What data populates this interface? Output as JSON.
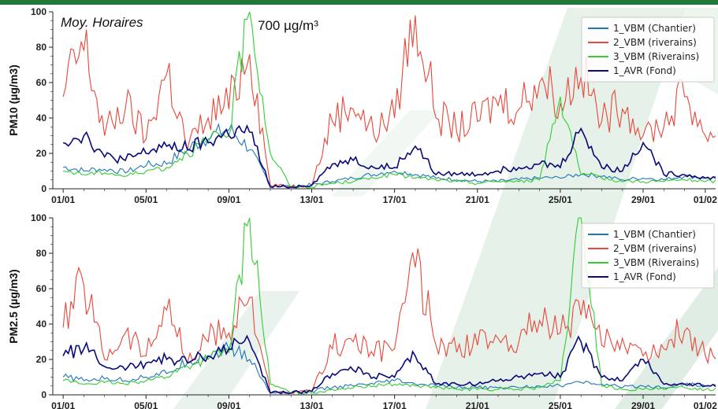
{
  "chart_data": [
    {
      "type": "line",
      "ylabel": "PM10 (µg/m3)",
      "ylim": [
        0,
        100
      ],
      "yticks": [
        "0",
        "20",
        "40",
        "60",
        "80",
        "100"
      ],
      "x_ticks": [
        "01/01",
        "05/01",
        "09/01",
        "13/01",
        "17/01",
        "21/01",
        "25/01",
        "29/01",
        "01/02"
      ],
      "annotations": [
        "Moy. Horaires",
        "700 µg/m³"
      ],
      "legend_position": "top-right",
      "grid": false,
      "series": [
        {
          "name": "1_VBM (Chantier)",
          "color": "#1f77b4",
          "x": [
            0,
            1,
            2,
            3,
            4,
            5,
            6,
            7,
            8,
            9,
            10,
            11,
            12,
            13,
            14,
            15,
            16,
            17,
            18,
            19,
            20,
            21,
            22,
            23,
            24,
            25,
            26,
            27,
            28,
            29,
            30,
            31
          ],
          "values": [
            12,
            10,
            11,
            9,
            13,
            14,
            22,
            28,
            33,
            22,
            2,
            1,
            2,
            4,
            6,
            8,
            10,
            8,
            6,
            5,
            4,
            4,
            5,
            6,
            6,
            8,
            7,
            5,
            6,
            5,
            7,
            6
          ]
        },
        {
          "name": "2_VBM (riverains)",
          "color": "#e8473a",
          "x": [
            0,
            1,
            2,
            3,
            4,
            5,
            6,
            7,
            8,
            9,
            10,
            11,
            12,
            13,
            14,
            15,
            16,
            17,
            18,
            19,
            20,
            21,
            22,
            23,
            24,
            25,
            26,
            27,
            28,
            29,
            30,
            31
          ],
          "values": [
            52,
            78,
            30,
            45,
            28,
            65,
            22,
            40,
            45,
            76,
            2,
            1,
            2,
            38,
            45,
            30,
            40,
            98,
            40,
            32,
            38,
            47,
            45,
            60,
            48,
            63,
            38,
            45,
            30,
            35,
            52,
            30
          ]
        },
        {
          "name": "3_VBM (Riverains)",
          "color": "#33cc33",
          "x": [
            0,
            1,
            2,
            3,
            4,
            5,
            6,
            7,
            8,
            9,
            10,
            11,
            12,
            13,
            14,
            15,
            16,
            17,
            18,
            19,
            20,
            21,
            22,
            23,
            24,
            25,
            26,
            27,
            28,
            29,
            30,
            31
          ],
          "values": [
            10,
            8,
            9,
            7,
            10,
            12,
            20,
            26,
            30,
            100,
            20,
            1,
            1,
            3,
            4,
            6,
            8,
            6,
            5,
            4,
            3,
            4,
            4,
            5,
            52,
            8,
            6,
            4,
            4,
            4,
            5,
            4
          ]
        },
        {
          "name": "1_AVR (Fond)",
          "color": "#0a0a7a",
          "x": [
            0,
            1,
            2,
            3,
            4,
            5,
            6,
            7,
            8,
            9,
            10,
            11,
            12,
            13,
            14,
            15,
            16,
            17,
            18,
            19,
            20,
            21,
            22,
            23,
            24,
            25,
            26,
            27,
            28,
            29,
            30,
            31
          ],
          "values": [
            26,
            30,
            18,
            16,
            20,
            24,
            22,
            26,
            30,
            32,
            1,
            1,
            2,
            14,
            16,
            12,
            12,
            24,
            8,
            8,
            8,
            10,
            12,
            14,
            12,
            34,
            12,
            10,
            26,
            8,
            8,
            6
          ]
        }
      ]
    },
    {
      "type": "line",
      "ylabel": "PM2.5 (µg/m3)",
      "ylim": [
        0,
        100
      ],
      "yticks": [
        "0",
        "20",
        "40",
        "60",
        "80",
        "100"
      ],
      "x_ticks": [
        "01/01",
        "05/01",
        "09/01",
        "13/01",
        "17/01",
        "21/01",
        "25/01",
        "29/01",
        "01/02"
      ],
      "legend_position": "top-right",
      "grid": false,
      "series": [
        {
          "name": "1_VBM (Chantier)",
          "color": "#1f77b4",
          "x": [
            0,
            1,
            2,
            3,
            4,
            5,
            6,
            7,
            8,
            9,
            10,
            11,
            12,
            13,
            14,
            15,
            16,
            17,
            18,
            19,
            20,
            21,
            22,
            23,
            24,
            25,
            26,
            27,
            28,
            29,
            30,
            31
          ],
          "values": [
            10,
            8,
            9,
            8,
            10,
            12,
            18,
            22,
            26,
            20,
            1,
            1,
            2,
            4,
            5,
            6,
            8,
            6,
            5,
            4,
            4,
            4,
            4,
            5,
            5,
            7,
            6,
            4,
            5,
            4,
            6,
            5
          ]
        },
        {
          "name": "2_VBM (riverains)",
          "color": "#e8473a",
          "x": [
            0,
            1,
            2,
            3,
            4,
            5,
            6,
            7,
            8,
            9,
            10,
            11,
            12,
            13,
            14,
            15,
            16,
            17,
            18,
            19,
            20,
            21,
            22,
            23,
            24,
            25,
            26,
            27,
            28,
            29,
            30,
            31
          ],
          "values": [
            38,
            62,
            20,
            35,
            22,
            48,
            18,
            30,
            35,
            55,
            1,
            1,
            2,
            26,
            30,
            22,
            26,
            72,
            28,
            24,
            28,
            32,
            30,
            42,
            35,
            45,
            28,
            32,
            22,
            26,
            36,
            22
          ]
        },
        {
          "name": "3_VBM (Riverains)",
          "color": "#33cc33",
          "x": [
            0,
            1,
            2,
            3,
            4,
            5,
            6,
            7,
            8,
            9,
            10,
            11,
            12,
            13,
            14,
            15,
            16,
            17,
            18,
            19,
            20,
            21,
            22,
            23,
            24,
            25,
            26,
            27,
            28,
            29,
            30,
            31
          ],
          "values": [
            8,
            6,
            7,
            6,
            8,
            10,
            16,
            20,
            24,
            100,
            6,
            1,
            1,
            3,
            4,
            5,
            6,
            5,
            4,
            3,
            3,
            3,
            3,
            4,
            8,
            100,
            5,
            3,
            3,
            3,
            4,
            3
          ]
        },
        {
          "name": "1_AVR (Fond)",
          "color": "#0a0a7a",
          "x": [
            0,
            1,
            2,
            3,
            4,
            5,
            6,
            7,
            8,
            9,
            10,
            11,
            12,
            13,
            14,
            15,
            16,
            17,
            18,
            19,
            20,
            21,
            22,
            23,
            24,
            25,
            26,
            27,
            28,
            29,
            30,
            31
          ],
          "values": [
            22,
            26,
            16,
            14,
            18,
            20,
            18,
            22,
            26,
            30,
            1,
            1,
            2,
            12,
            14,
            10,
            10,
            22,
            6,
            6,
            6,
            8,
            10,
            12,
            10,
            30,
            10,
            8,
            20,
            6,
            6,
            5
          ]
        }
      ]
    }
  ]
}
